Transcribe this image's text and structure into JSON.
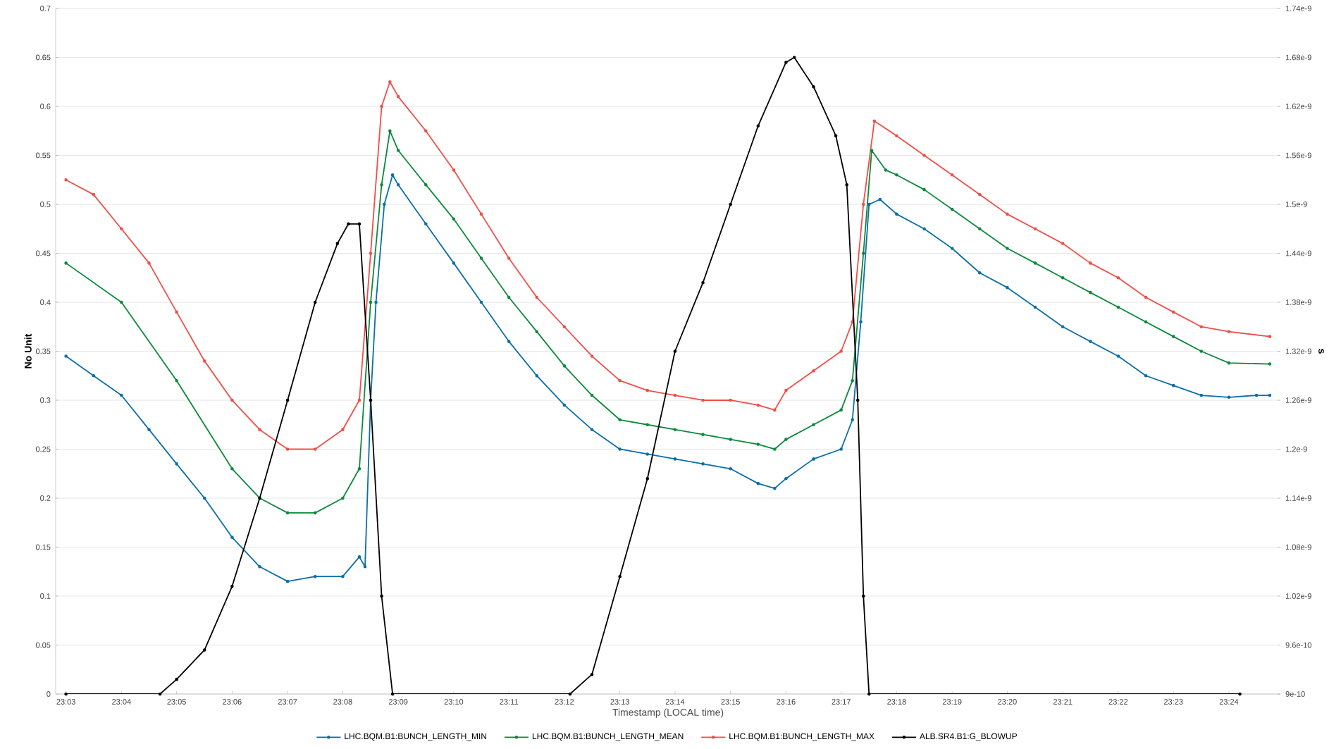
{
  "chart_data": {
    "type": "line",
    "xlabel": "Timestamp (LOCAL time)",
    "ylabel": "No Unit",
    "y2label": "s",
    "xlim": [
      23.0469,
      23.4155
    ],
    "ylim": [
      0,
      0.7
    ],
    "y2lim": [
      9e-10,
      1.74e-09
    ],
    "xticks": [
      {
        "value": 23.05,
        "label": "23:03"
      },
      {
        "value": 23.0667,
        "label": "23:04"
      },
      {
        "value": 23.0833,
        "label": "23:05"
      },
      {
        "value": 23.1,
        "label": "23:06"
      },
      {
        "value": 23.1167,
        "label": "23:07"
      },
      {
        "value": 23.1333,
        "label": "23:08"
      },
      {
        "value": 23.15,
        "label": "23:09"
      },
      {
        "value": 23.1667,
        "label": "23:10"
      },
      {
        "value": 23.1833,
        "label": "23:11"
      },
      {
        "value": 23.2,
        "label": "23:12"
      },
      {
        "value": 23.2167,
        "label": "23:13"
      },
      {
        "value": 23.2333,
        "label": "23:14"
      },
      {
        "value": 23.25,
        "label": "23:15"
      },
      {
        "value": 23.2667,
        "label": "23:16"
      },
      {
        "value": 23.2833,
        "label": "23:17"
      },
      {
        "value": 23.3,
        "label": "23:18"
      },
      {
        "value": 23.3167,
        "label": "23:19"
      },
      {
        "value": 23.3333,
        "label": "23:20"
      },
      {
        "value": 23.35,
        "label": "23:21"
      },
      {
        "value": 23.3667,
        "label": "23:22"
      },
      {
        "value": 23.3833,
        "label": "23:23"
      },
      {
        "value": 23.4,
        "label": "23:24"
      }
    ],
    "yticks": [
      0,
      0.05,
      0.1,
      0.15,
      0.2,
      0.25,
      0.3,
      0.35,
      0.4,
      0.45,
      0.5,
      0.55,
      0.6,
      0.65,
      0.7
    ],
    "y2ticks": [
      {
        "value": 9e-10,
        "label": "9e-10"
      },
      {
        "value": 9.6e-10,
        "label": "9.6e-10"
      },
      {
        "value": 1.02e-09,
        "label": "1.02e-9"
      },
      {
        "value": 1.08e-09,
        "label": "1.08e-9"
      },
      {
        "value": 1.14e-09,
        "label": "1.14e-9"
      },
      {
        "value": 1.2e-09,
        "label": "1.2e-9"
      },
      {
        "value": 1.26e-09,
        "label": "1.26e-9"
      },
      {
        "value": 1.32e-09,
        "label": "1.32e-9"
      },
      {
        "value": 1.38e-09,
        "label": "1.38e-9"
      },
      {
        "value": 1.44e-09,
        "label": "1.44e-9"
      },
      {
        "value": 1.5e-09,
        "label": "1.5e-9"
      },
      {
        "value": 1.56e-09,
        "label": "1.56e-9"
      },
      {
        "value": 1.62e-09,
        "label": "1.62e-9"
      },
      {
        "value": 1.68e-09,
        "label": "1.68e-9"
      },
      {
        "value": 1.74e-09,
        "label": "1.74e-9"
      }
    ],
    "grid": "y",
    "legend": "bottom",
    "marker": "circle",
    "line_style": "solid",
    "series": [
      {
        "name": "LHC.BQM.B1:BUNCH_LENGTH_MIN",
        "color": "#0a6fa8",
        "x": [
          23.05,
          23.0583,
          23.0667,
          23.075,
          23.0833,
          23.0917,
          23.1,
          23.1083,
          23.1167,
          23.125,
          23.1333,
          23.1383,
          23.14,
          23.1417,
          23.1433,
          23.1458,
          23.1483,
          23.15,
          23.1583,
          23.1667,
          23.175,
          23.1833,
          23.1917,
          23.2,
          23.2083,
          23.2167,
          23.225,
          23.2333,
          23.2417,
          23.25,
          23.2583,
          23.2633,
          23.2667,
          23.275,
          23.2833,
          23.2867,
          23.2892,
          23.2917,
          23.295,
          23.3,
          23.3083,
          23.3167,
          23.325,
          23.3333,
          23.3417,
          23.35,
          23.3583,
          23.3667,
          23.375,
          23.3833,
          23.3917,
          23.4,
          23.4083,
          23.4123
        ],
        "values": [
          0.345,
          0.325,
          0.305,
          0.27,
          0.235,
          0.2,
          0.16,
          0.13,
          0.115,
          0.12,
          0.12,
          0.14,
          0.13,
          0.3,
          0.4,
          0.5,
          0.53,
          0.52,
          0.48,
          0.44,
          0.4,
          0.36,
          0.325,
          0.295,
          0.27,
          0.25,
          0.245,
          0.24,
          0.235,
          0.23,
          0.215,
          0.21,
          0.22,
          0.24,
          0.25,
          0.28,
          0.38,
          0.5,
          0.505,
          0.49,
          0.475,
          0.455,
          0.43,
          0.415,
          0.395,
          0.375,
          0.36,
          0.345,
          0.325,
          0.315,
          0.305,
          0.303,
          0.305,
          0.305
        ]
      },
      {
        "name": "LHC.BQM.B1:BUNCH_LENGTH_MEAN",
        "color": "#0b8a3c",
        "x": [
          23.05,
          23.0667,
          23.0833,
          23.1,
          23.1083,
          23.1167,
          23.125,
          23.1333,
          23.1383,
          23.1417,
          23.145,
          23.1475,
          23.15,
          23.1583,
          23.1667,
          23.175,
          23.1833,
          23.1917,
          23.2,
          23.2083,
          23.2167,
          23.225,
          23.2333,
          23.2417,
          23.25,
          23.2583,
          23.2633,
          23.2667,
          23.275,
          23.2833,
          23.2867,
          23.29,
          23.2925,
          23.2967,
          23.3,
          23.3083,
          23.3167,
          23.325,
          23.3333,
          23.3417,
          23.35,
          23.3583,
          23.3667,
          23.375,
          23.3833,
          23.3917,
          23.4,
          23.4123
        ],
        "values": [
          0.44,
          0.4,
          0.32,
          0.23,
          0.2,
          0.185,
          0.185,
          0.2,
          0.23,
          0.4,
          0.52,
          0.575,
          0.555,
          0.52,
          0.485,
          0.445,
          0.405,
          0.37,
          0.335,
          0.305,
          0.28,
          0.275,
          0.27,
          0.265,
          0.26,
          0.255,
          0.25,
          0.26,
          0.275,
          0.29,
          0.32,
          0.45,
          0.555,
          0.535,
          0.53,
          0.515,
          0.495,
          0.475,
          0.455,
          0.44,
          0.425,
          0.41,
          0.395,
          0.38,
          0.365,
          0.35,
          0.338,
          0.337
        ]
      },
      {
        "name": "LHC.BQM.B1:BUNCH_LENGTH_MAX",
        "color": "#f24e48",
        "x": [
          23.05,
          23.0583,
          23.0667,
          23.075,
          23.0833,
          23.0917,
          23.1,
          23.1083,
          23.1167,
          23.125,
          23.1333,
          23.1383,
          23.1417,
          23.145,
          23.1475,
          23.15,
          23.1583,
          23.1667,
          23.175,
          23.1833,
          23.1917,
          23.2,
          23.2083,
          23.2167,
          23.225,
          23.2333,
          23.2417,
          23.25,
          23.2583,
          23.2633,
          23.2667,
          23.275,
          23.2833,
          23.2867,
          23.29,
          23.2933,
          23.3,
          23.3083,
          23.3167,
          23.325,
          23.3333,
          23.3417,
          23.35,
          23.3583,
          23.3667,
          23.375,
          23.3833,
          23.3917,
          23.4,
          23.4123
        ],
        "values": [
          0.525,
          0.51,
          0.475,
          0.44,
          0.39,
          0.34,
          0.3,
          0.27,
          0.25,
          0.25,
          0.27,
          0.3,
          0.45,
          0.6,
          0.625,
          0.61,
          0.575,
          0.535,
          0.49,
          0.445,
          0.405,
          0.375,
          0.345,
          0.32,
          0.31,
          0.305,
          0.3,
          0.3,
          0.295,
          0.29,
          0.31,
          0.33,
          0.35,
          0.38,
          0.5,
          0.585,
          0.57,
          0.55,
          0.53,
          0.51,
          0.49,
          0.475,
          0.46,
          0.44,
          0.425,
          0.405,
          0.39,
          0.375,
          0.37,
          0.365
        ]
      },
      {
        "name": "ALB.SR4.B1:G_BLOWUP",
        "color": "#000000",
        "axis": "y2",
        "x": [
          23.05,
          23.0783,
          23.0833,
          23.0917,
          23.1,
          23.1083,
          23.1167,
          23.125,
          23.1317,
          23.135,
          23.1383,
          23.1417,
          23.145,
          23.1483,
          23.2017,
          23.2083,
          23.2167,
          23.225,
          23.2333,
          23.2417,
          23.25,
          23.2583,
          23.2667,
          23.2692,
          23.275,
          23.2817,
          23.285,
          23.2883,
          23.29,
          23.2917,
          23.4033
        ],
        "values": [
          9e-10,
          9e-10,
          9.18e-10,
          9.54e-10,
          1.032e-09,
          1.14e-09,
          1.26e-09,
          1.38e-09,
          1.452e-09,
          1.476e-09,
          1.476e-09,
          1.26e-09,
          1.02e-09,
          9e-10,
          9e-10,
          9.24e-10,
          1.044e-09,
          1.164e-09,
          1.32e-09,
          1.404e-09,
          1.5e-09,
          1.596e-09,
          1.674e-09,
          1.68e-09,
          1.644e-09,
          1.584e-09,
          1.524e-09,
          1.26e-09,
          1.02e-09,
          9e-10,
          9e-10
        ]
      }
    ]
  }
}
